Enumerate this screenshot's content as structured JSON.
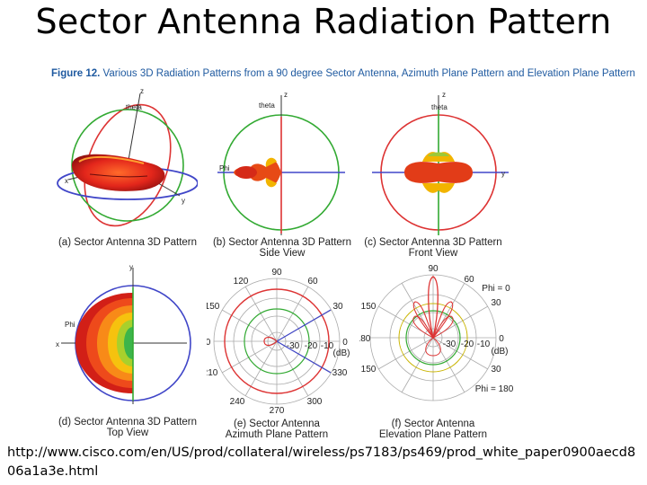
{
  "title": "Sector Antenna Radiation Pattern",
  "figure": {
    "label": "Figure 12.",
    "caption": "Various 3D Radiation Patterns from a 90 degree Sector Antenna, Azimuth Plane Pattern and Elevation Plane Pattern"
  },
  "panels": {
    "a": {
      "line1": "(a) Sector Antenna 3D Pattern",
      "line2": ""
    },
    "b": {
      "line1": "(b) Sector Antenna 3D Pattern",
      "line2": "Side View"
    },
    "c": {
      "line1": "(c) Sector Antenna 3D Pattern",
      "line2": "Front View"
    },
    "d": {
      "line1": "(d) Sector Antenna 3D Pattern",
      "line2": "Top View"
    },
    "e": {
      "line1": "(e) Sector Antenna",
      "line2": "Azimuth Plane Pattern"
    },
    "f": {
      "line1": "(f) Sector Antenna",
      "line2": "Elevation Plane Pattern"
    }
  },
  "axes": {
    "x": "x",
    "y": "y",
    "z": "z",
    "theta": "theta",
    "phi": "Phi"
  },
  "polar": {
    "angles": [
      "90",
      "60",
      "30",
      "0",
      "330",
      "300",
      "270",
      "240",
      "210",
      "180",
      "150",
      "120"
    ],
    "rings": [
      "-30",
      "-20",
      "-10"
    ],
    "unit": "(dB)",
    "phi0": "Phi = 0",
    "phi180": "Phi = 180"
  },
  "source_url": "http://www.cisco.com/en/US/prod/collateral/wireless/ps7183/ps469/prod_white_paper0900aecd806a1a3e.html"
}
